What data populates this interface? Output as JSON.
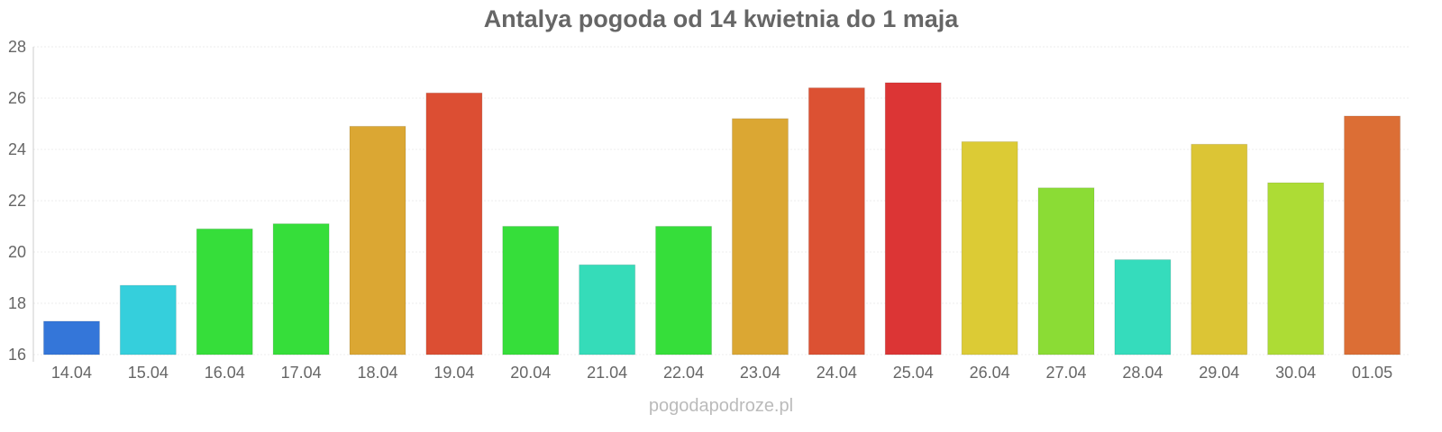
{
  "chart_data": {
    "type": "bar",
    "title": "Antalya pogoda od 14 kwietnia do 1 maja",
    "xlabel": "",
    "ylabel": "",
    "ylim": [
      16,
      28
    ],
    "yticks": [
      16,
      18,
      20,
      22,
      24,
      26,
      28
    ],
    "grid": true,
    "categories": [
      "14.04",
      "15.04",
      "16.04",
      "17.04",
      "18.04",
      "19.04",
      "20.04",
      "21.04",
      "22.04",
      "23.04",
      "24.04",
      "25.04",
      "26.04",
      "27.04",
      "28.04",
      "29.04",
      "30.04",
      "01.05"
    ],
    "values": [
      17.3,
      18.7,
      20.9,
      21.1,
      24.9,
      26.2,
      21.0,
      19.5,
      21.0,
      25.2,
      26.4,
      26.6,
      24.3,
      22.5,
      19.7,
      24.2,
      22.7,
      25.3
    ],
    "colors": [
      "#3476d9",
      "#35cfdc",
      "#36de3a",
      "#36de3a",
      "#dba733",
      "#dc4e33",
      "#36de3a",
      "#35dcb9",
      "#36de3a",
      "#dba733",
      "#dc5133",
      "#dc3535",
      "#dccb35",
      "#8bdc35",
      "#35dcbc",
      "#dcc535",
      "#addc35",
      "#dc6e35"
    ]
  },
  "footer": "pogodapodroze.pl"
}
